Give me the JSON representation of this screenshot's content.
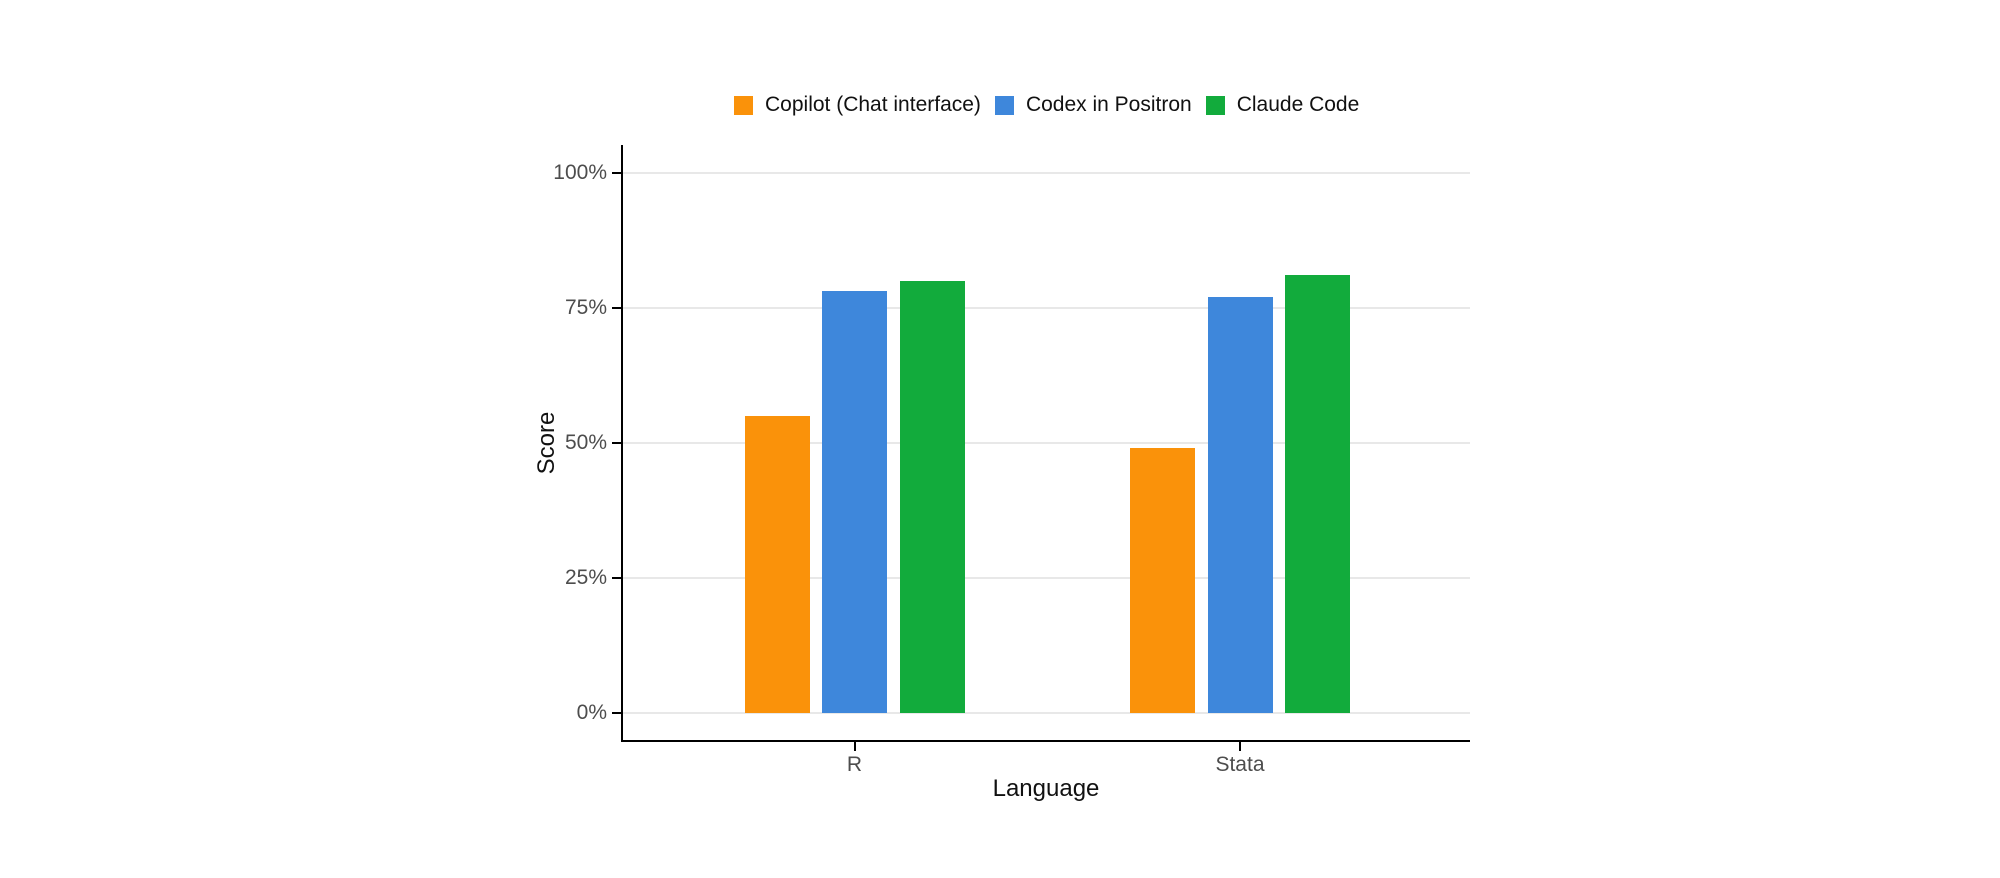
{
  "figure": {
    "background": "#ffffff"
  },
  "chart_data": {
    "type": "bar",
    "categories": [
      "R",
      "Stata"
    ],
    "series": [
      {
        "name": "Copilot (Chat interface)",
        "color": "#FA920A",
        "values": [
          55,
          49
        ]
      },
      {
        "name": "Codex in Positron",
        "color": "#3E87DB",
        "values": [
          78,
          77
        ]
      },
      {
        "name": "Claude Code",
        "color": "#12AB3C",
        "values": [
          80,
          81
        ]
      }
    ],
    "xlabel": "Language",
    "ylabel": "Score",
    "y_tick_values": [
      0,
      25,
      50,
      75,
      100
    ],
    "y_tick_labels": [
      "0%",
      "25%",
      "50%",
      "75%",
      "100%"
    ],
    "ylim": [
      0,
      100
    ],
    "grid": true,
    "legend_position": "top",
    "axis_color": "#000000",
    "gridline_color": "#E8E8E8",
    "tick_label_color": "#4D4D4D",
    "title_color": "#111111"
  }
}
